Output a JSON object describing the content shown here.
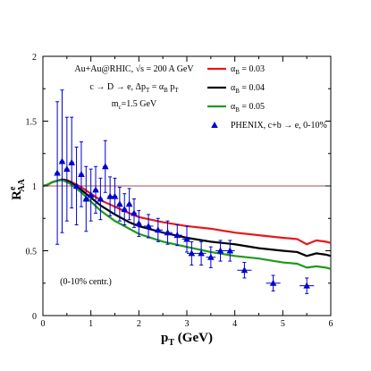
{
  "chart_data": {
    "type": "line",
    "xlabel": "p",
    "xlabel_sub": "T",
    "xlabel_unit": " (GeV)",
    "ylabel": "R",
    "ylabel_sup": "e",
    "ylabel_sub": "AA",
    "xlim": [
      0,
      6
    ],
    "ylim": [
      0,
      2
    ],
    "x_ticks": [
      0,
      1,
      2,
      3,
      4,
      5,
      6
    ],
    "x_tick_labels": [
      "0",
      "1",
      "2",
      "3",
      "4",
      "5",
      "6"
    ],
    "y_ticks": [
      0,
      0.5,
      1,
      1.5,
      2
    ],
    "y_tick_labels": [
      "0",
      "0.5",
      "1",
      "1.5",
      "2"
    ],
    "reference_line": {
      "y": 1,
      "color": "#a05050"
    },
    "legend_position": "top-right",
    "annotations": {
      "system": "Au+Au@RHIC, √s = 200 A GeV",
      "process": "c → D → e, Δp",
      "process_sub": "T",
      "process_mid": " = α",
      "process_sub2": "B",
      "process_tail": " p",
      "process_sub3": "T",
      "mass": "m",
      "mass_sub": "c",
      "mass_tail": "=1.5 GeV",
      "centrality": "(0-10% centr.)"
    },
    "series": [
      {
        "name": "α",
        "name_sub": "B",
        "name_tail": " = 0.03",
        "color": "#e8171d",
        "kind": "line",
        "x": [
          0.0,
          0.1,
          0.2,
          0.3,
          0.4,
          0.5,
          0.6,
          0.8,
          1.0,
          1.2,
          1.5,
          1.8,
          2.0,
          2.5,
          3.0,
          3.5,
          4.0,
          4.5,
          5.0,
          5.3,
          5.5,
          5.7,
          5.9,
          6.0
        ],
        "y": [
          1.0,
          1.01,
          1.03,
          1.04,
          1.05,
          1.045,
          1.03,
          0.99,
          0.94,
          0.89,
          0.84,
          0.79,
          0.76,
          0.72,
          0.69,
          0.67,
          0.64,
          0.62,
          0.6,
          0.59,
          0.55,
          0.58,
          0.57,
          0.56
        ]
      },
      {
        "name": "α",
        "name_sub": "B",
        "name_tail": " = 0.04",
        "color": "#000000",
        "kind": "line",
        "x": [
          0.0,
          0.1,
          0.2,
          0.3,
          0.4,
          0.5,
          0.6,
          0.8,
          1.0,
          1.2,
          1.5,
          1.8,
          2.0,
          2.5,
          3.0,
          3.5,
          4.0,
          4.5,
          5.0,
          5.3,
          5.5,
          5.7,
          5.9,
          6.0
        ],
        "y": [
          1.0,
          1.01,
          1.03,
          1.04,
          1.05,
          1.04,
          1.02,
          0.97,
          0.91,
          0.85,
          0.78,
          0.72,
          0.69,
          0.64,
          0.6,
          0.57,
          0.55,
          0.52,
          0.5,
          0.49,
          0.46,
          0.48,
          0.47,
          0.46
        ]
      },
      {
        "name": "α",
        "name_sub": "B",
        "name_tail": " = 0.05",
        "color": "#1e9a1e",
        "kind": "line",
        "x": [
          0.0,
          0.1,
          0.2,
          0.3,
          0.4,
          0.5,
          0.6,
          0.8,
          1.0,
          1.2,
          1.5,
          1.8,
          2.0,
          2.5,
          3.0,
          3.5,
          4.0,
          4.5,
          5.0,
          5.3,
          5.5,
          5.7,
          5.9,
          6.0
        ],
        "y": [
          1.0,
          1.01,
          1.03,
          1.04,
          1.045,
          1.03,
          1.01,
          0.95,
          0.88,
          0.81,
          0.73,
          0.67,
          0.63,
          0.57,
          0.53,
          0.49,
          0.46,
          0.44,
          0.41,
          0.4,
          0.37,
          0.38,
          0.37,
          0.36
        ]
      },
      {
        "name": "PHENIX, c+b → e, 0-10%",
        "color": "#0000d0",
        "kind": "points",
        "points": [
          {
            "x": 0.3,
            "y": 1.1,
            "yerr": 0.55,
            "xerr": 0.05
          },
          {
            "x": 0.4,
            "y": 1.19,
            "yerr": 0.55,
            "xerr": 0.05
          },
          {
            "x": 0.5,
            "y": 1.13,
            "yerr": 0.4,
            "xerr": 0.05
          },
          {
            "x": 0.6,
            "y": 1.18,
            "yerr": 0.35,
            "xerr": 0.05
          },
          {
            "x": 0.7,
            "y": 1.0,
            "yerr": 0.3,
            "xerr": 0.05
          },
          {
            "x": 0.8,
            "y": 1.09,
            "yerr": 0.25,
            "xerr": 0.05
          },
          {
            "x": 0.9,
            "y": 0.9,
            "yerr": 0.25,
            "xerr": 0.05
          },
          {
            "x": 1.0,
            "y": 0.93,
            "yerr": 0.2,
            "xerr": 0.05
          },
          {
            "x": 1.1,
            "y": 0.97,
            "yerr": 0.18,
            "xerr": 0.05
          },
          {
            "x": 1.2,
            "y": 0.9,
            "yerr": 0.16,
            "xerr": 0.05
          },
          {
            "x": 1.3,
            "y": 1.15,
            "yerr": 0.2,
            "xerr": 0.05
          },
          {
            "x": 1.4,
            "y": 0.92,
            "yerr": 0.15,
            "xerr": 0.05
          },
          {
            "x": 1.5,
            "y": 0.92,
            "yerr": 0.14,
            "xerr": 0.05
          },
          {
            "x": 1.6,
            "y": 0.86,
            "yerr": 0.13,
            "xerr": 0.05
          },
          {
            "x": 1.7,
            "y": 0.82,
            "yerr": 0.12,
            "xerr": 0.05
          },
          {
            "x": 1.8,
            "y": 0.86,
            "yerr": 0.12,
            "xerr": 0.05
          },
          {
            "x": 1.9,
            "y": 0.79,
            "yerr": 0.11,
            "xerr": 0.05
          },
          {
            "x": 2.0,
            "y": 0.71,
            "yerr": 0.1,
            "xerr": 0.05
          },
          {
            "x": 2.2,
            "y": 0.69,
            "yerr": 0.09,
            "xerr": 0.1
          },
          {
            "x": 2.4,
            "y": 0.66,
            "yerr": 0.09,
            "xerr": 0.1
          },
          {
            "x": 2.6,
            "y": 0.64,
            "yerr": 0.09,
            "xerr": 0.1
          },
          {
            "x": 2.8,
            "y": 0.62,
            "yerr": 0.08,
            "xerr": 0.1
          },
          {
            "x": 3.0,
            "y": 0.59,
            "yerr": 0.1,
            "xerr": 0.1
          },
          {
            "x": 3.1,
            "y": 0.48,
            "yerr": 0.09,
            "xerr": 0.1
          },
          {
            "x": 3.3,
            "y": 0.48,
            "yerr": 0.09,
            "xerr": 0.1
          },
          {
            "x": 3.5,
            "y": 0.45,
            "yerr": 0.08,
            "xerr": 0.1
          },
          {
            "x": 3.7,
            "y": 0.5,
            "yerr": 0.08,
            "xerr": 0.1
          },
          {
            "x": 3.9,
            "y": 0.5,
            "yerr": 0.08,
            "xerr": 0.1
          },
          {
            "x": 4.2,
            "y": 0.35,
            "yerr": 0.06,
            "xerr": 0.15
          },
          {
            "x": 4.8,
            "y": 0.25,
            "yerr": 0.06,
            "xerr": 0.15
          },
          {
            "x": 5.5,
            "y": 0.23,
            "yerr": 0.06,
            "xerr": 0.15
          }
        ]
      }
    ]
  }
}
